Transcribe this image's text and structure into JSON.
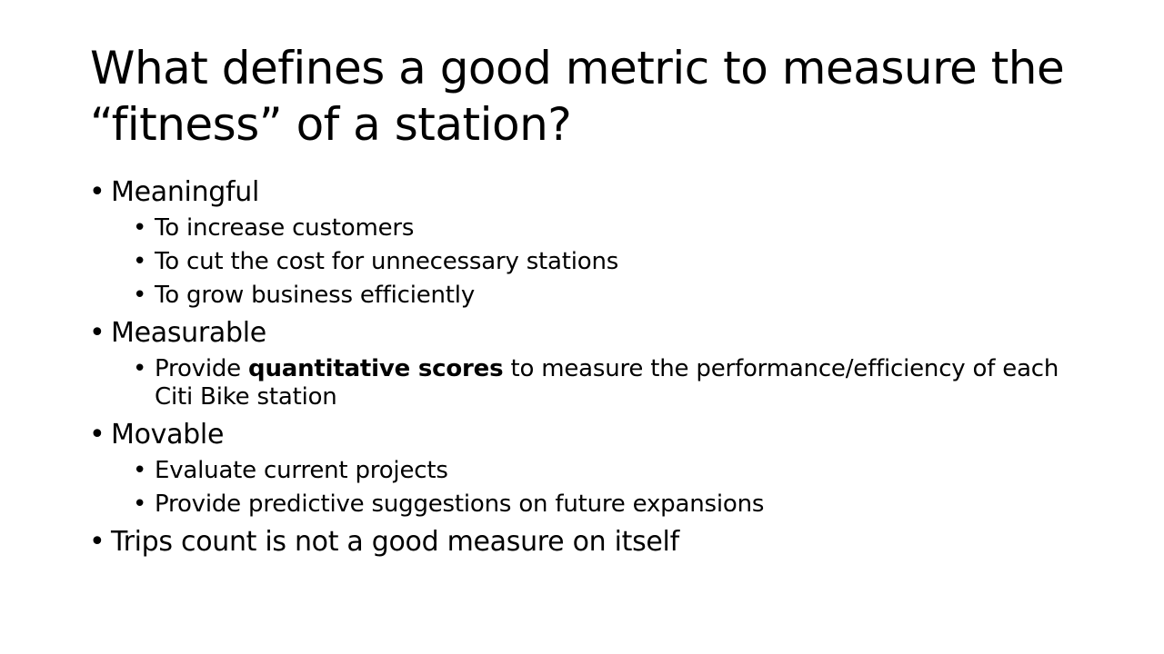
{
  "slide": {
    "title": "What defines a good metric to measure the “fitness” of a station?",
    "bullets": [
      {
        "text": "Meaningful",
        "children": [
          {
            "text": "To increase customers"
          },
          {
            "text": "To cut the cost for unnecessary stations"
          },
          {
            "text": "To grow business efficiently"
          }
        ]
      },
      {
        "text": "Measurable",
        "children": [
          {
            "pre": "Provide ",
            "emph": "quantitative scores",
            "post": " to measure the performance/efficiency of each Citi Bike station"
          }
        ]
      },
      {
        "text": "Movable",
        "children": [
          {
            "text": "Evaluate current projects"
          },
          {
            "text": "Provide predictive suggestions on future expansions"
          }
        ]
      },
      {
        "text": "Trips count is not a good measure on itself",
        "children": []
      }
    ],
    "bullet_glyph": "•"
  }
}
